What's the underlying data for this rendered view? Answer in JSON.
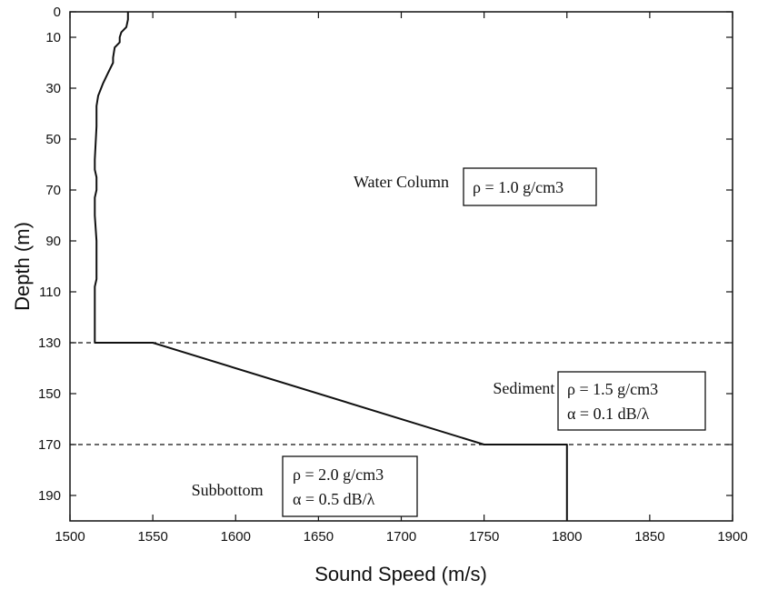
{
  "chart_data": {
    "type": "line",
    "xlabel": "Sound Speed (m/s)",
    "ylabel": "Depth (m)",
    "xlim": [
      1500,
      1900
    ],
    "ylim": [
      0,
      200
    ],
    "y_inverted": true,
    "x_ticks": [
      "1500",
      "1550",
      "1600",
      "1650",
      "1700",
      "1750",
      "1800",
      "1850",
      "1900"
    ],
    "y_ticks": [
      "0",
      "10",
      "30",
      "50",
      "70",
      "90",
      "110",
      "130",
      "150",
      "170",
      "190"
    ],
    "y_tick_values": [
      0,
      10,
      30,
      50,
      70,
      90,
      110,
      130,
      150,
      170,
      190
    ],
    "grid": false,
    "series": [
      {
        "x": [
          1535,
          1535,
          1534,
          1531,
          1530,
          1530,
          1527,
          1526,
          1526,
          1523,
          1520,
          1517,
          1516,
          1516,
          1515,
          1515,
          1516,
          1516,
          1515,
          1515,
          1516,
          1516,
          1515,
          1515,
          1515,
          1550,
          1750,
          1800,
          1800
        ],
        "y": [
          0,
          3,
          6,
          8,
          10,
          12,
          14,
          18,
          20,
          24,
          28,
          33,
          37,
          45,
          58,
          62,
          65,
          70,
          73,
          80,
          90,
          105,
          108,
          115,
          130,
          130,
          170,
          170,
          200
        ]
      }
    ],
    "boundaries": [
      130,
      170
    ],
    "region_labels": [
      {
        "text": "Water Column",
        "x": 1700,
        "y": 69
      },
      {
        "text": "Sediment",
        "x": 1774,
        "y": 150
      },
      {
        "text": "Subbottom",
        "x": 1595,
        "y": 190
      }
    ],
    "annotations": [
      {
        "lines": [
          "ρ = 1.0 g/cm3"
        ]
      },
      {
        "lines": [
          "ρ = 1.5 g/cm3",
          "α = 0.1 dB/λ"
        ]
      },
      {
        "lines": [
          "ρ = 2.0 g/cm3",
          "α = 0.5 dB/λ"
        ]
      }
    ]
  }
}
